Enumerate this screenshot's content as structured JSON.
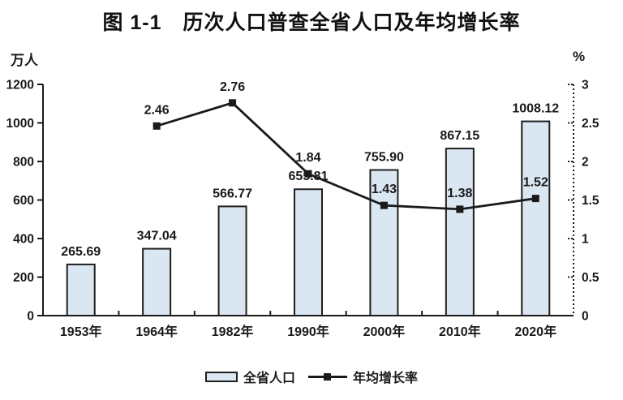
{
  "page": {
    "title": "图 1-1　历次人口普查全省人口及年均增长率"
  },
  "chart_data": {
    "type": "bar",
    "title": "图 1-1　历次人口普查全省人口及年均增长率",
    "categories": [
      "1953年",
      "1964年",
      "1982年",
      "1990年",
      "2000年",
      "2010年",
      "2020年"
    ],
    "series": [
      {
        "name": "全省人口",
        "type": "bar",
        "axis": "left",
        "values": [
          265.69,
          347.04,
          566.77,
          655.81,
          755.9,
          867.15,
          1008.12
        ],
        "labels": [
          "265.69",
          "347.04",
          "566.77",
          "655.81",
          "755.90",
          "867.15",
          "1008.12"
        ]
      },
      {
        "name": "年均增长率",
        "type": "line",
        "axis": "right",
        "values": [
          null,
          2.46,
          2.76,
          1.84,
          1.43,
          1.38,
          1.52
        ],
        "labels": [
          "",
          "2.46",
          "2.76",
          "1.84",
          "1.43",
          "1.38",
          "1.52"
        ]
      }
    ],
    "left_axis": {
      "unit": "万人",
      "min": 0,
      "max": 1200,
      "step": 200,
      "ticks": [
        "0",
        "200",
        "400",
        "600",
        "800",
        "1000",
        "1200"
      ]
    },
    "right_axis": {
      "unit": "%",
      "min": 0,
      "max": 3,
      "step": 0.5,
      "ticks": [
        "0",
        "0.5",
        "1",
        "1.5",
        "2",
        "2.5",
        "3"
      ]
    },
    "legend": [
      {
        "label": "全省人口",
        "type": "bar"
      },
      {
        "label": "年均增长率",
        "type": "line"
      }
    ],
    "colors": {
      "bar_fill": "#dae6f2",
      "bar_stroke": "#1f1f1f",
      "line": "#1a1a1a",
      "text": "#1a1a1a"
    },
    "grid": "off",
    "legend_position": "bottom"
  }
}
